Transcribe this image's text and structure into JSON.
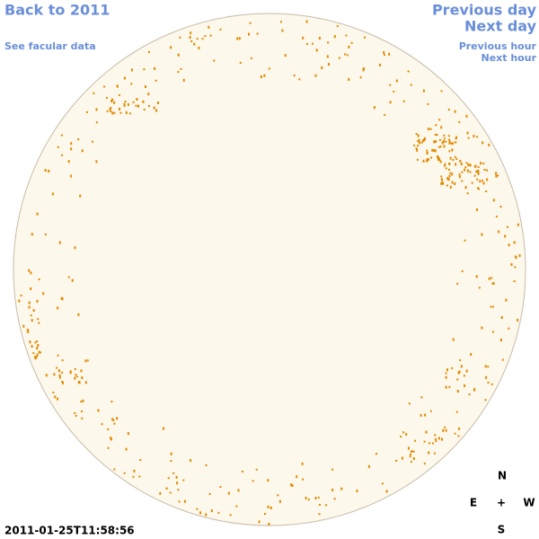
{
  "links": {
    "back_to_year": "Back to 2011",
    "facular_data": "See facular data",
    "previous_day": "Previous day",
    "next_day": "Next day",
    "previous_hour": "Previous hour",
    "next_hour": "Next hour"
  },
  "timestamp": "2011-01-25T11:58:56",
  "compass": {
    "north": "N",
    "east": "E",
    "center": "+",
    "west": "W",
    "south": "S"
  }
}
